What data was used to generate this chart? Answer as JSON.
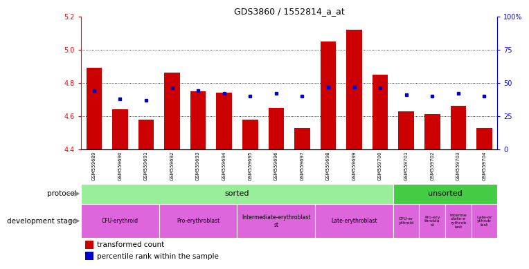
{
  "title": "GDS3860 / 1552814_a_at",
  "samples": [
    "GSM559689",
    "GSM559690",
    "GSM559691",
    "GSM559692",
    "GSM559693",
    "GSM559694",
    "GSM559695",
    "GSM559696",
    "GSM559697",
    "GSM559698",
    "GSM559699",
    "GSM559700",
    "GSM559701",
    "GSM559702",
    "GSM559703",
    "GSM559704"
  ],
  "red_values": [
    4.89,
    4.64,
    4.58,
    4.86,
    4.75,
    4.74,
    4.58,
    4.65,
    4.53,
    5.05,
    5.12,
    4.85,
    4.63,
    4.61,
    4.66,
    4.53
  ],
  "blue_pct": [
    44,
    38,
    37,
    46,
    44,
    42,
    40,
    42,
    40,
    47,
    47,
    46,
    41,
    40,
    42,
    40
  ],
  "ymin": 4.4,
  "ymax": 5.2,
  "yticks": [
    4.4,
    4.6,
    4.8,
    5.0,
    5.2
  ],
  "y2ticks": [
    0,
    25,
    50,
    75,
    100
  ],
  "bar_color": "#cc0000",
  "dot_color": "#0000cc",
  "sorted_bg": "#99ee99",
  "unsorted_bg": "#44cc44",
  "dev_stage_bg": "#dd66dd",
  "gray_bg": "#cccccc",
  "legend_red": "transformed count",
  "legend_blue": "percentile rank within the sample",
  "n_sorted": 12,
  "n_unsorted": 4,
  "dev_sorted_labels": [
    "CFU-erythroid",
    "Pro-erythroblast",
    "Intermediate-erythroblast\nst",
    "Late-erythroblast"
  ],
  "dev_sorted_counts": [
    3,
    3,
    3,
    3
  ],
  "dev_unsorted_labels": [
    "CFU-er\nythroid",
    "Pro-ery\nthrobla\nst",
    "Interme\ndiate-e\nrythrob\nlast",
    "Late-er\nythrob\nlast"
  ],
  "dev_unsorted_counts": [
    1,
    1,
    1,
    1
  ]
}
